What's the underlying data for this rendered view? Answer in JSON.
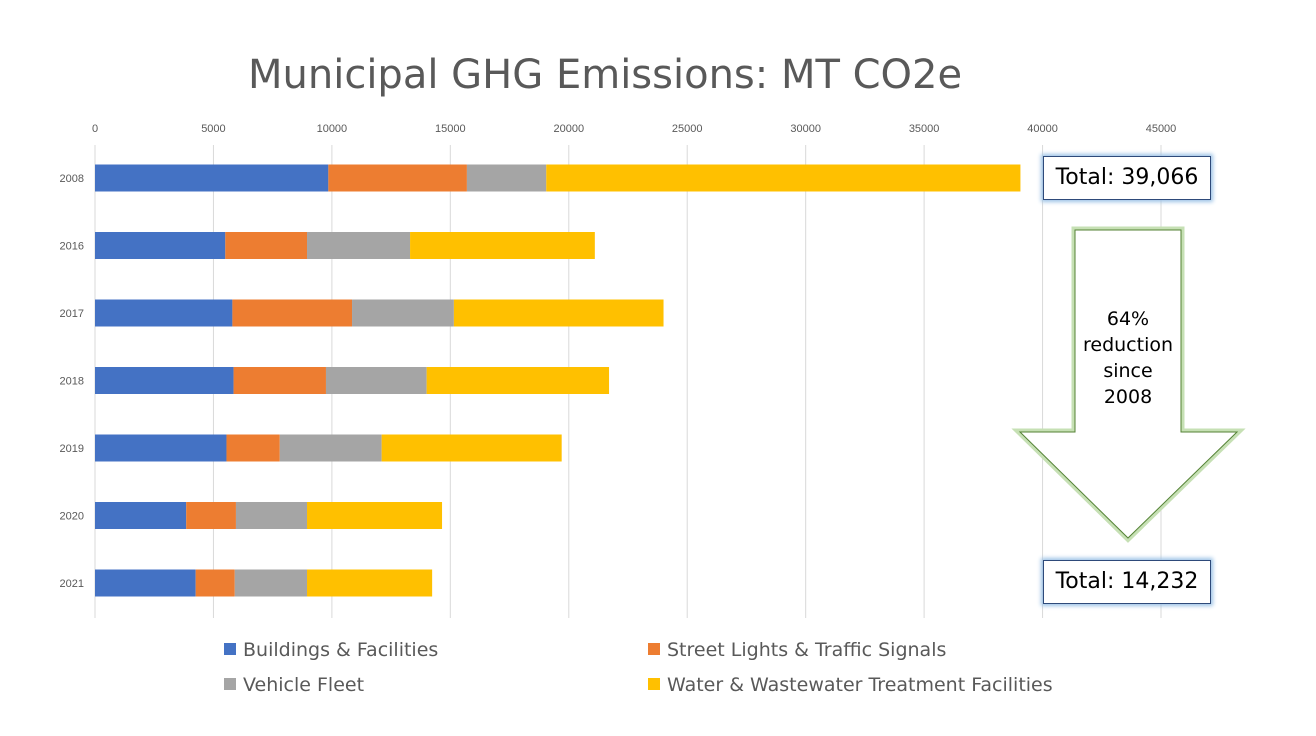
{
  "title": "Municipal GHG Emissions: MT CO2e",
  "chart_data": {
    "type": "bar",
    "orientation": "horizontal",
    "stacked": true,
    "categories": [
      "2008",
      "2016",
      "2017",
      "2018",
      "2019",
      "2020",
      "2021"
    ],
    "xlim": [
      0,
      45000
    ],
    "xticks": [
      0,
      5000,
      10000,
      15000,
      20000,
      25000,
      30000,
      35000,
      40000,
      45000
    ],
    "x_axis_position": "top",
    "grid": "vertical",
    "legend_position": "bottom",
    "series": [
      {
        "name": "Buildings & Facilities",
        "color": "#4472c4",
        "values": [
          9850,
          5500,
          5800,
          5850,
          5550,
          3850,
          4250
        ]
      },
      {
        "name": "Street Lights & Traffic Signals",
        "color": "#ed7d31",
        "values": [
          5850,
          3450,
          5050,
          3900,
          2250,
          2100,
          1650
        ]
      },
      {
        "name": "Vehicle Fleet",
        "color": "#a5a5a5",
        "values": [
          3350,
          4350,
          4300,
          4250,
          4300,
          3000,
          3050
        ]
      },
      {
        "name": "Water & Wastewater Treatment Facilities",
        "color": "#ffc000",
        "values": [
          20016,
          7800,
          8850,
          7700,
          7600,
          5700,
          5282
        ]
      }
    ]
  },
  "annotations": {
    "total_top": "Total: 39,066",
    "total_bottom": "Total: 14,232",
    "arrow_lines": [
      "64%",
      "reduction",
      "since",
      "2008"
    ]
  }
}
